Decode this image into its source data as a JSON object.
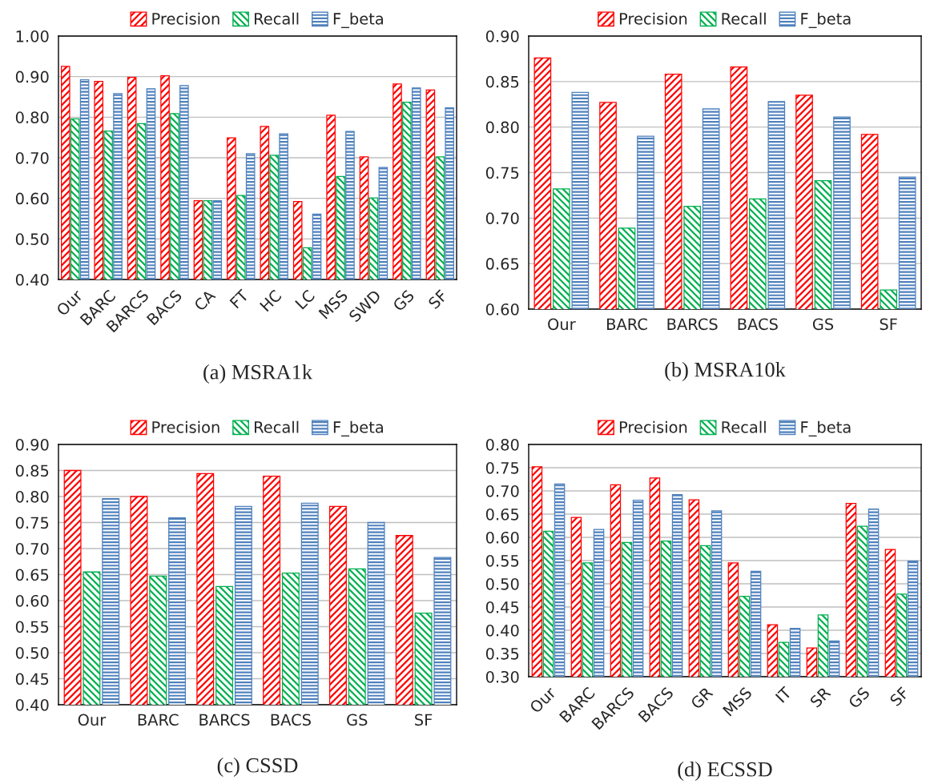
{
  "chart_data": [
    {
      "type": "bar",
      "title": "(a) MSRA1k",
      "categories": [
        "Our",
        "BARC",
        "BARCS",
        "BACS",
        "CA",
        "FT",
        "HC",
        "LC",
        "MSS",
        "SWD",
        "GS",
        "SF"
      ],
      "ylim": [
        0.4,
        1.0
      ],
      "yticks": [
        {
          "value": 0.4,
          "label": "0.40"
        },
        {
          "value": 0.5,
          "label": "0.50"
        },
        {
          "value": 0.6,
          "label": "0.60"
        },
        {
          "value": 0.7,
          "label": "0.70"
        },
        {
          "value": 0.8,
          "label": "0.80"
        },
        {
          "value": 0.9,
          "label": "0.90"
        },
        {
          "value": 1.0,
          "label": "1.00"
        }
      ],
      "grid": "y",
      "legend": "top",
      "series": [
        {
          "name": "Precision",
          "color": "#ff0000",
          "values": [
            0.925,
            0.888,
            0.898,
            0.902,
            0.594,
            0.749,
            0.777,
            0.592,
            0.805,
            0.702,
            0.882,
            0.867
          ]
        },
        {
          "name": "Recall",
          "color": "#00b050",
          "values": [
            0.796,
            0.766,
            0.784,
            0.809,
            0.594,
            0.607,
            0.706,
            0.478,
            0.654,
            0.601,
            0.837,
            0.702
          ]
        },
        {
          "name": "F_beta",
          "color": "#4f81bd",
          "values": [
            0.892,
            0.858,
            0.87,
            0.878,
            0.594,
            0.71,
            0.759,
            0.561,
            0.765,
            0.676,
            0.872,
            0.823
          ]
        }
      ]
    },
    {
      "type": "bar",
      "title": "(b) MSRA10k",
      "categories": [
        "Our",
        "BARC",
        "BARCS",
        "BACS",
        "GS",
        "SF"
      ],
      "ylim": [
        0.6,
        0.9
      ],
      "yticks": [
        {
          "value": 0.6,
          "label": "0.60"
        },
        {
          "value": 0.65,
          "label": "0.65"
        },
        {
          "value": 0.7,
          "label": "0.70"
        },
        {
          "value": 0.75,
          "label": "0.75"
        },
        {
          "value": 0.8,
          "label": "0.80"
        },
        {
          "value": 0.85,
          "label": "0.85"
        },
        {
          "value": 0.9,
          "label": "0.90"
        }
      ],
      "grid": "y",
      "legend": "top",
      "series": [
        {
          "name": "Precision",
          "color": "#ff0000",
          "values": [
            0.876,
            0.827,
            0.858,
            0.866,
            0.835,
            0.792
          ]
        },
        {
          "name": "Recall",
          "color": "#00b050",
          "values": [
            0.732,
            0.689,
            0.713,
            0.721,
            0.741,
            0.621
          ]
        },
        {
          "name": "F_beta",
          "color": "#4f81bd",
          "values": [
            0.838,
            0.79,
            0.82,
            0.828,
            0.811,
            0.745
          ]
        }
      ]
    },
    {
      "type": "bar",
      "title": "(c) CSSD",
      "categories": [
        "Our",
        "BARC",
        "BARCS",
        "BACS",
        "GS",
        "SF"
      ],
      "ylim": [
        0.4,
        0.9
      ],
      "yticks": [
        {
          "value": 0.4,
          "label": "0.40"
        },
        {
          "value": 0.45,
          "label": "0.45"
        },
        {
          "value": 0.5,
          "label": "0.50"
        },
        {
          "value": 0.55,
          "label": "0.55"
        },
        {
          "value": 0.6,
          "label": "0.60"
        },
        {
          "value": 0.65,
          "label": "0.65"
        },
        {
          "value": 0.7,
          "label": "0.70"
        },
        {
          "value": 0.75,
          "label": "0.75"
        },
        {
          "value": 0.8,
          "label": "0.80"
        },
        {
          "value": 0.85,
          "label": "0.85"
        },
        {
          "value": 0.9,
          "label": "0.90"
        }
      ],
      "grid": "y",
      "legend": "top",
      "series": [
        {
          "name": "Precision",
          "color": "#ff0000",
          "values": [
            0.85,
            0.8,
            0.844,
            0.839,
            0.781,
            0.725
          ]
        },
        {
          "name": "Recall",
          "color": "#00b050",
          "values": [
            0.655,
            0.647,
            0.627,
            0.653,
            0.661,
            0.576
          ]
        },
        {
          "name": "F_beta",
          "color": "#4f81bd",
          "values": [
            0.796,
            0.759,
            0.781,
            0.787,
            0.75,
            0.683
          ]
        }
      ]
    },
    {
      "type": "bar",
      "title": "(d) ECSSD",
      "categories": [
        "Our",
        "BARC",
        "BARCS",
        "BACS",
        "GR",
        "MSS",
        "IT",
        "SR",
        "GS",
        "SF"
      ],
      "ylim": [
        0.3,
        0.8
      ],
      "yticks": [
        {
          "value": 0.3,
          "label": "0.30"
        },
        {
          "value": 0.35,
          "label": "0.35"
        },
        {
          "value": 0.4,
          "label": "0.40"
        },
        {
          "value": 0.45,
          "label": "0.45"
        },
        {
          "value": 0.5,
          "label": "0.50"
        },
        {
          "value": 0.55,
          "label": "0.55"
        },
        {
          "value": 0.6,
          "label": "0.60"
        },
        {
          "value": 0.65,
          "label": "0.65"
        },
        {
          "value": 0.7,
          "label": "0.70"
        },
        {
          "value": 0.75,
          "label": "0.75"
        },
        {
          "value": 0.8,
          "label": "0.80"
        }
      ],
      "grid": "y",
      "legend": "top",
      "series": [
        {
          "name": "Precision",
          "color": "#ff0000",
          "values": [
            0.752,
            0.643,
            0.713,
            0.728,
            0.681,
            0.545,
            0.412,
            0.362,
            0.673,
            0.574
          ]
        },
        {
          "name": "Recall",
          "color": "#00b050",
          "values": [
            0.613,
            0.545,
            0.589,
            0.592,
            0.582,
            0.473,
            0.374,
            0.433,
            0.624,
            0.478
          ]
        },
        {
          "name": "F_beta",
          "color": "#4f81bd",
          "values": [
            0.715,
            0.617,
            0.68,
            0.692,
            0.657,
            0.527,
            0.404,
            0.377,
            0.661,
            0.549
          ]
        }
      ]
    }
  ]
}
